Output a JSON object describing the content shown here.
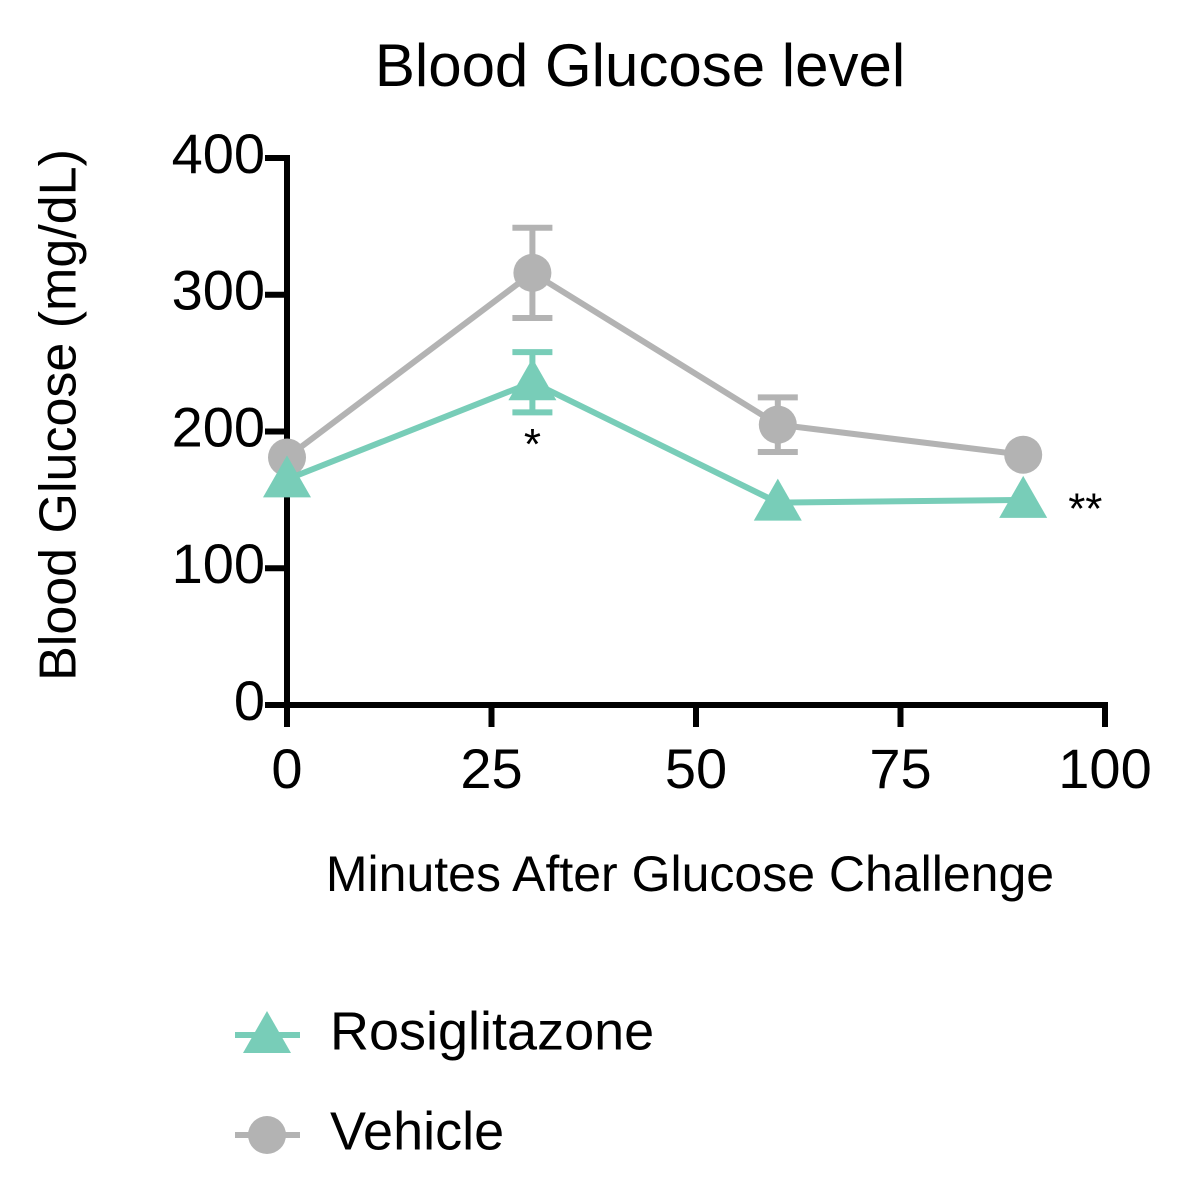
{
  "chart_data": {
    "type": "line",
    "title": "Blood Glucose level",
    "x_label": "Minutes After Glucose Challenge",
    "y_label": "Blood Glucose (mg/dL)",
    "x": [
      0,
      30,
      60,
      90
    ],
    "series": [
      {
        "name": "Rosiglitazone",
        "color": "#78cdb8",
        "marker": "triangle",
        "values": [
          165,
          236,
          148,
          150
        ],
        "errors": [
          null,
          22,
          null,
          null
        ]
      },
      {
        "name": "Vehicle",
        "color": "#b3b3b3",
        "marker": "circle",
        "values": [
          181,
          316,
          205,
          183
        ],
        "errors": [
          null,
          33,
          20,
          null
        ]
      }
    ],
    "annotations": [
      {
        "text": "*",
        "x": 30
      },
      {
        "text": "**",
        "x": 90
      }
    ],
    "xlim": [
      0,
      100
    ],
    "xticks": [
      0,
      25,
      50,
      75,
      100
    ],
    "ylim": [
      0,
      400
    ],
    "yticks": [
      0,
      100,
      200,
      300,
      400
    ],
    "grid": false,
    "legend": "bottom"
  }
}
